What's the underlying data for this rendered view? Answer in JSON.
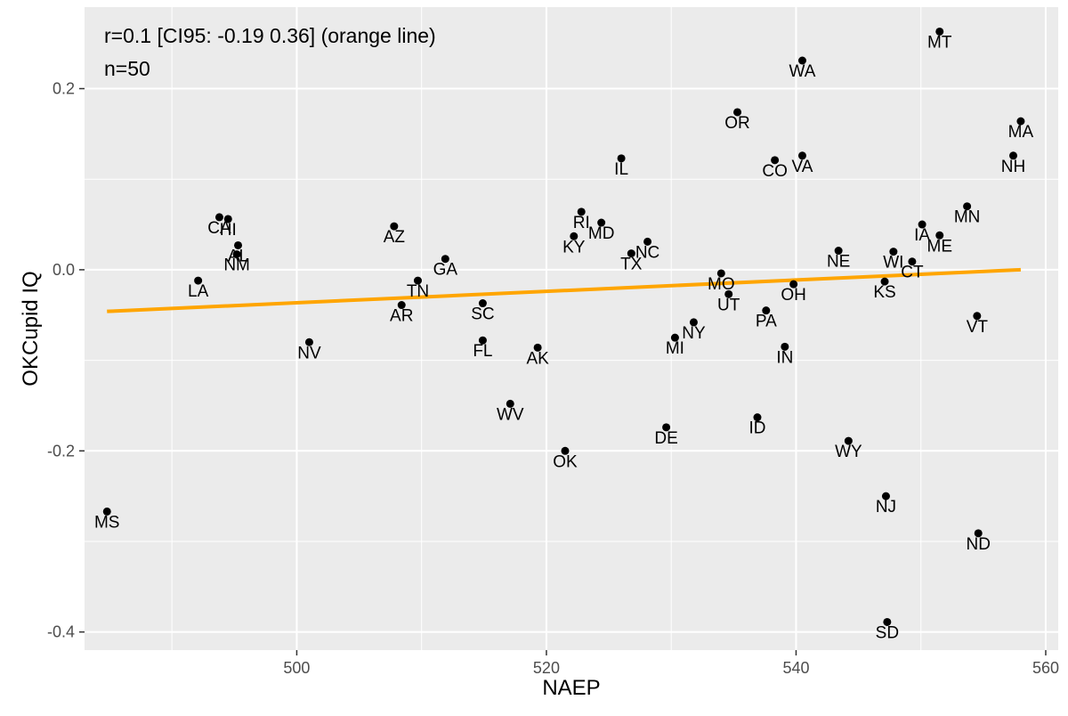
{
  "chart_data": {
    "type": "scatter",
    "title": "",
    "xlabel": "NAEP",
    "ylabel": "OKCupid IQ",
    "xlim": [
      483.0,
      561.0
    ],
    "ylim": [
      -0.42,
      0.29
    ],
    "x_ticks": [
      500,
      520,
      540,
      560
    ],
    "y_ticks": [
      0.2,
      0.0,
      -0.2,
      -0.4
    ],
    "x_tick_labels": [
      "500",
      "520",
      "540",
      "560"
    ],
    "y_tick_labels": [
      "0.2",
      "0.0",
      "-0.2",
      "-0.4"
    ],
    "grid": true,
    "annotations": [
      "r=0.1 [CI95: -0.19 0.36] (orange line)",
      "n=50"
    ],
    "fit_line": {
      "color": "#FFA500",
      "x": [
        484.8,
        558.0
      ],
      "y": [
        -0.046,
        0.0
      ]
    },
    "points": [
      {
        "label": "MT",
        "x": 551.5,
        "y": 0.263
      },
      {
        "label": "WA",
        "x": 540.5,
        "y": 0.231
      },
      {
        "label": "OR",
        "x": 535.3,
        "y": 0.174
      },
      {
        "label": "MA",
        "x": 558.0,
        "y": 0.164
      },
      {
        "label": "NH",
        "x": 557.4,
        "y": 0.126
      },
      {
        "label": "IL",
        "x": 526.0,
        "y": 0.123
      },
      {
        "label": "CO",
        "x": 538.3,
        "y": 0.121
      },
      {
        "label": "VA",
        "x": 540.5,
        "y": 0.126
      },
      {
        "label": "MN",
        "x": 553.7,
        "y": 0.07
      },
      {
        "label": "CA",
        "x": 493.8,
        "y": 0.058
      },
      {
        "label": "HI",
        "x": 494.5,
        "y": 0.056
      },
      {
        "label": "RI",
        "x": 522.8,
        "y": 0.064
      },
      {
        "label": "MD",
        "x": 524.4,
        "y": 0.052
      },
      {
        "label": "IA",
        "x": 550.1,
        "y": 0.05
      },
      {
        "label": "AZ",
        "x": 507.8,
        "y": 0.048
      },
      {
        "label": "ME",
        "x": 551.5,
        "y": 0.038
      },
      {
        "label": "KY",
        "x": 522.2,
        "y": 0.037
      },
      {
        "label": "NC",
        "x": 528.1,
        "y": 0.031
      },
      {
        "label": "AL",
        "x": 495.3,
        "y": 0.027
      },
      {
        "label": "NE",
        "x": 543.4,
        "y": 0.021
      },
      {
        "label": "WI",
        "x": 547.8,
        "y": 0.02
      },
      {
        "label": "TX",
        "x": 526.8,
        "y": 0.018
      },
      {
        "label": "NM",
        "x": 495.2,
        "y": 0.017
      },
      {
        "label": "GA",
        "x": 511.9,
        "y": 0.012
      },
      {
        "label": "CT",
        "x": 549.3,
        "y": 0.009
      },
      {
        "label": "MO",
        "x": 534.0,
        "y": -0.004
      },
      {
        "label": "LA",
        "x": 492.1,
        "y": -0.012
      },
      {
        "label": "TN",
        "x": 509.7,
        "y": -0.012
      },
      {
        "label": "KS",
        "x": 547.1,
        "y": -0.013
      },
      {
        "label": "OH",
        "x": 539.8,
        "y": -0.016
      },
      {
        "label": "UT",
        "x": 534.6,
        "y": -0.027
      },
      {
        "label": "SC",
        "x": 514.9,
        "y": -0.037
      },
      {
        "label": "AR",
        "x": 508.4,
        "y": -0.039
      },
      {
        "label": "PA",
        "x": 537.6,
        "y": -0.045
      },
      {
        "label": "VT",
        "x": 554.5,
        "y": -0.051
      },
      {
        "label": "NY",
        "x": 531.8,
        "y": -0.058
      },
      {
        "label": "MI",
        "x": 530.3,
        "y": -0.075
      },
      {
        "label": "FL",
        "x": 514.9,
        "y": -0.078
      },
      {
        "label": "NV",
        "x": 501.0,
        "y": -0.08
      },
      {
        "label": "IN",
        "x": 539.1,
        "y": -0.085
      },
      {
        "label": "AK",
        "x": 519.3,
        "y": -0.086
      },
      {
        "label": "WV",
        "x": 517.1,
        "y": -0.148
      },
      {
        "label": "ID",
        "x": 536.9,
        "y": -0.163
      },
      {
        "label": "DE",
        "x": 529.6,
        "y": -0.174
      },
      {
        "label": "WY",
        "x": 544.2,
        "y": -0.189
      },
      {
        "label": "OK",
        "x": 521.5,
        "y": -0.2
      },
      {
        "label": "NJ",
        "x": 547.2,
        "y": -0.25
      },
      {
        "label": "MS",
        "x": 484.8,
        "y": -0.267
      },
      {
        "label": "ND",
        "x": 554.6,
        "y": -0.291
      },
      {
        "label": "SD",
        "x": 547.3,
        "y": -0.389
      }
    ]
  }
}
